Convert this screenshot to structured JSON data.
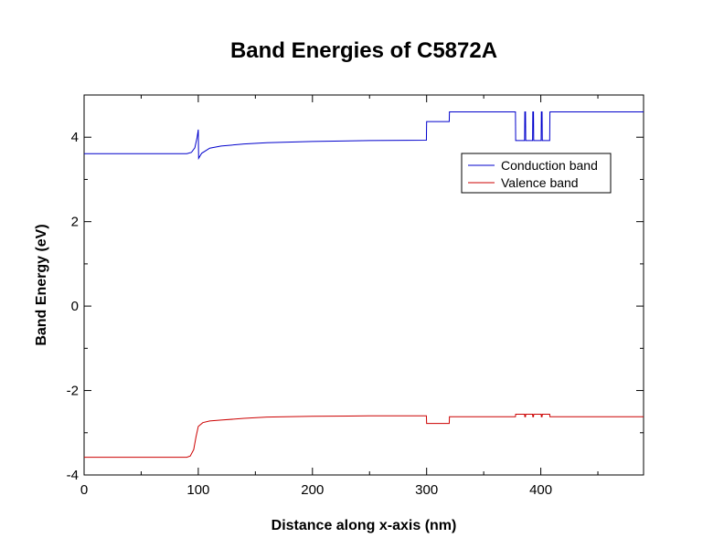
{
  "chart_data": {
    "type": "line",
    "title": "Band Energies of C5872A",
    "xlabel": "Distance along x-axis (nm)",
    "ylabel": "Band Energy (eV)",
    "xlim": [
      0,
      490
    ],
    "ylim": [
      -4,
      5
    ],
    "x_major_ticks": [
      0,
      100,
      200,
      300,
      400
    ],
    "x_major_tick_labels": [
      "0",
      "100",
      "200",
      "300",
      "400"
    ],
    "x_minor_ticks": [
      50,
      150,
      250,
      350,
      450
    ],
    "y_major_ticks": [
      -4,
      -2,
      0,
      2,
      4
    ],
    "y_major_tick_labels": [
      "-4",
      "-2",
      "0",
      "2",
      "4"
    ],
    "y_minor_ticks": [
      -3,
      -1,
      1,
      3
    ],
    "grid": false,
    "legend_position": "upper-right",
    "series": [
      {
        "name": "Conduction band",
        "color": "#0000cc",
        "points": [
          [
            0,
            3.61
          ],
          [
            90,
            3.61
          ],
          [
            94,
            3.64
          ],
          [
            97,
            3.75
          ],
          [
            99,
            4.0
          ],
          [
            100,
            4.18
          ],
          [
            100.3,
            3.5
          ],
          [
            103,
            3.62
          ],
          [
            110,
            3.74
          ],
          [
            120,
            3.79
          ],
          [
            140,
            3.84
          ],
          [
            160,
            3.87
          ],
          [
            200,
            3.9
          ],
          [
            250,
            3.92
          ],
          [
            299.8,
            3.93
          ],
          [
            300,
            4.37
          ],
          [
            319.8,
            4.37
          ],
          [
            320,
            4.6
          ],
          [
            377.8,
            4.6
          ],
          [
            378,
            3.92
          ],
          [
            385.8,
            3.92
          ],
          [
            386,
            4.6
          ],
          [
            386.6,
            4.6
          ],
          [
            386.8,
            3.92
          ],
          [
            392.8,
            3.92
          ],
          [
            393,
            4.6
          ],
          [
            393.6,
            4.6
          ],
          [
            393.8,
            3.92
          ],
          [
            400.3,
            3.92
          ],
          [
            400.5,
            4.6
          ],
          [
            401.1,
            4.6
          ],
          [
            401.3,
            3.92
          ],
          [
            407.8,
            3.92
          ],
          [
            408,
            4.6
          ],
          [
            490,
            4.6
          ]
        ]
      },
      {
        "name": "Valence band",
        "color": "#cc0000",
        "points": [
          [
            0,
            -3.58
          ],
          [
            90,
            -3.58
          ],
          [
            93,
            -3.55
          ],
          [
            96,
            -3.4
          ],
          [
            98,
            -3.1
          ],
          [
            100,
            -2.85
          ],
          [
            104,
            -2.76
          ],
          [
            110,
            -2.72
          ],
          [
            120,
            -2.7
          ],
          [
            140,
            -2.66
          ],
          [
            160,
            -2.63
          ],
          [
            200,
            -2.61
          ],
          [
            250,
            -2.6
          ],
          [
            299.8,
            -2.6
          ],
          [
            300,
            -2.78
          ],
          [
            319.8,
            -2.78
          ],
          [
            320,
            -2.62
          ],
          [
            377.8,
            -2.62
          ],
          [
            378,
            -2.56
          ],
          [
            385.8,
            -2.56
          ],
          [
            386,
            -2.62
          ],
          [
            386.6,
            -2.62
          ],
          [
            386.8,
            -2.56
          ],
          [
            392.8,
            -2.56
          ],
          [
            393,
            -2.62
          ],
          [
            393.6,
            -2.62
          ],
          [
            393.8,
            -2.56
          ],
          [
            400.3,
            -2.56
          ],
          [
            400.5,
            -2.62
          ],
          [
            401.1,
            -2.62
          ],
          [
            401.3,
            -2.56
          ],
          [
            407.8,
            -2.56
          ],
          [
            408,
            -2.62
          ],
          [
            490,
            -2.62
          ]
        ]
      }
    ]
  }
}
